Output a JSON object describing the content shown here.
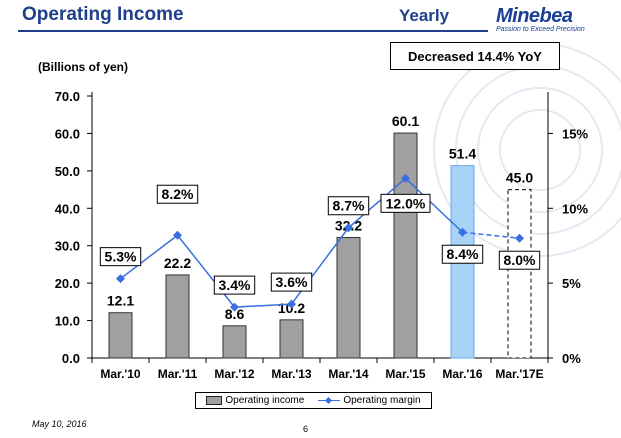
{
  "header": {
    "title": "Operating Income",
    "period": "Yearly",
    "logo_word": "Minebea",
    "logo_tagline": "Passion to Exceed Precision"
  },
  "callout": "Decreased 14.4% YoY",
  "unit_label": "(Billions of yen)",
  "legend": {
    "bar": "Operating income",
    "line": "Operating margin"
  },
  "footer": {
    "date": "May 10, 2016",
    "page": "6"
  },
  "colors": {
    "brand": "#1f3e8c",
    "bar_actual": "#a0a0a0",
    "bar_current": "#a8d2f8",
    "line": "#3a6fe0"
  },
  "chart_data": {
    "type": "bar",
    "title": "",
    "categories": [
      "Mar.'10",
      "Mar.'11",
      "Mar.'12",
      "Mar.'13",
      "Mar.'14",
      "Mar.'15",
      "Mar.'16",
      "Mar.'17E"
    ],
    "series": [
      {
        "name": "Operating income",
        "type": "bar",
        "axis": "left",
        "values": [
          12.1,
          22.2,
          8.6,
          10.2,
          32.2,
          60.1,
          51.4,
          45.0
        ],
        "labels": [
          "12.1",
          "22.2",
          "8.6",
          "10.2",
          "32.2",
          "60.1",
          "51.4",
          "45.0"
        ],
        "highlight_index": 6,
        "forecast_index": 7
      },
      {
        "name": "Operating margin",
        "type": "line",
        "axis": "right",
        "values": [
          5.3,
          8.2,
          3.4,
          3.6,
          8.7,
          12.0,
          8.4,
          8.0
        ],
        "labels": [
          "5.3%",
          "8.2%",
          "3.4%",
          "3.6%",
          "8.7%",
          "12.0%",
          "8.4%",
          "8.0%"
        ],
        "forecast_index": 7
      }
    ],
    "y_left": {
      "ylim": [
        0,
        70
      ],
      "ticks": [
        "0.0",
        "10.0",
        "20.0",
        "30.0",
        "40.0",
        "50.0",
        "60.0",
        "70.0"
      ]
    },
    "y_right": {
      "ylim": [
        0,
        17.5
      ],
      "ticks": [
        "0%",
        "5%",
        "10%",
        "15%"
      ],
      "tick_values": [
        0,
        5,
        10,
        15
      ]
    },
    "grid": false,
    "legend_position": "bottom"
  }
}
